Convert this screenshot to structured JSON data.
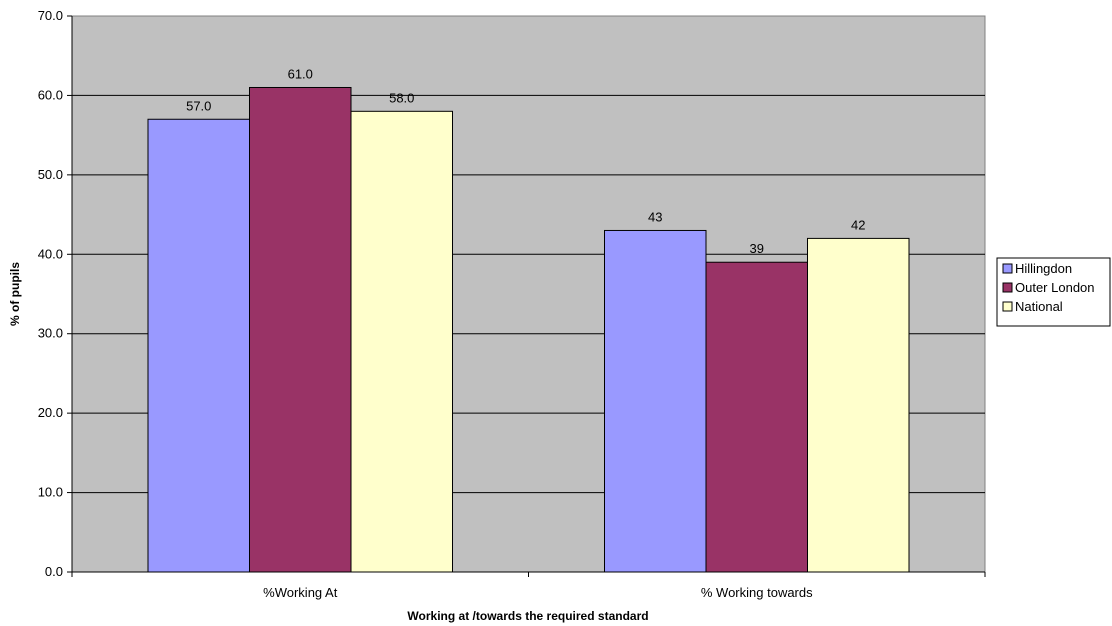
{
  "chart_data": {
    "type": "bar",
    "categories": [
      "%Working At",
      "% Working towards"
    ],
    "series": [
      {
        "name": "Hillingdon",
        "values": [
          57.0,
          43
        ],
        "labels": [
          "57.0",
          "43"
        ],
        "color": "#9999ff"
      },
      {
        "name": "Outer London",
        "values": [
          61.0,
          39
        ],
        "labels": [
          "61.0",
          "39"
        ],
        "color": "#993366"
      },
      {
        "name": "National",
        "values": [
          58.0,
          42
        ],
        "labels": [
          "58.0",
          "42"
        ],
        "color": "#ffffcc"
      }
    ],
    "xlabel": "Working at /towards the required standard",
    "ylabel": "% of pupils",
    "ylim": [
      0,
      70
    ],
    "yticks": [
      "0.0",
      "10.0",
      "20.0",
      "30.0",
      "40.0",
      "50.0",
      "60.0",
      "70.0"
    ],
    "grid": true,
    "legend": "right",
    "plot_background": "#c0c0c0"
  }
}
